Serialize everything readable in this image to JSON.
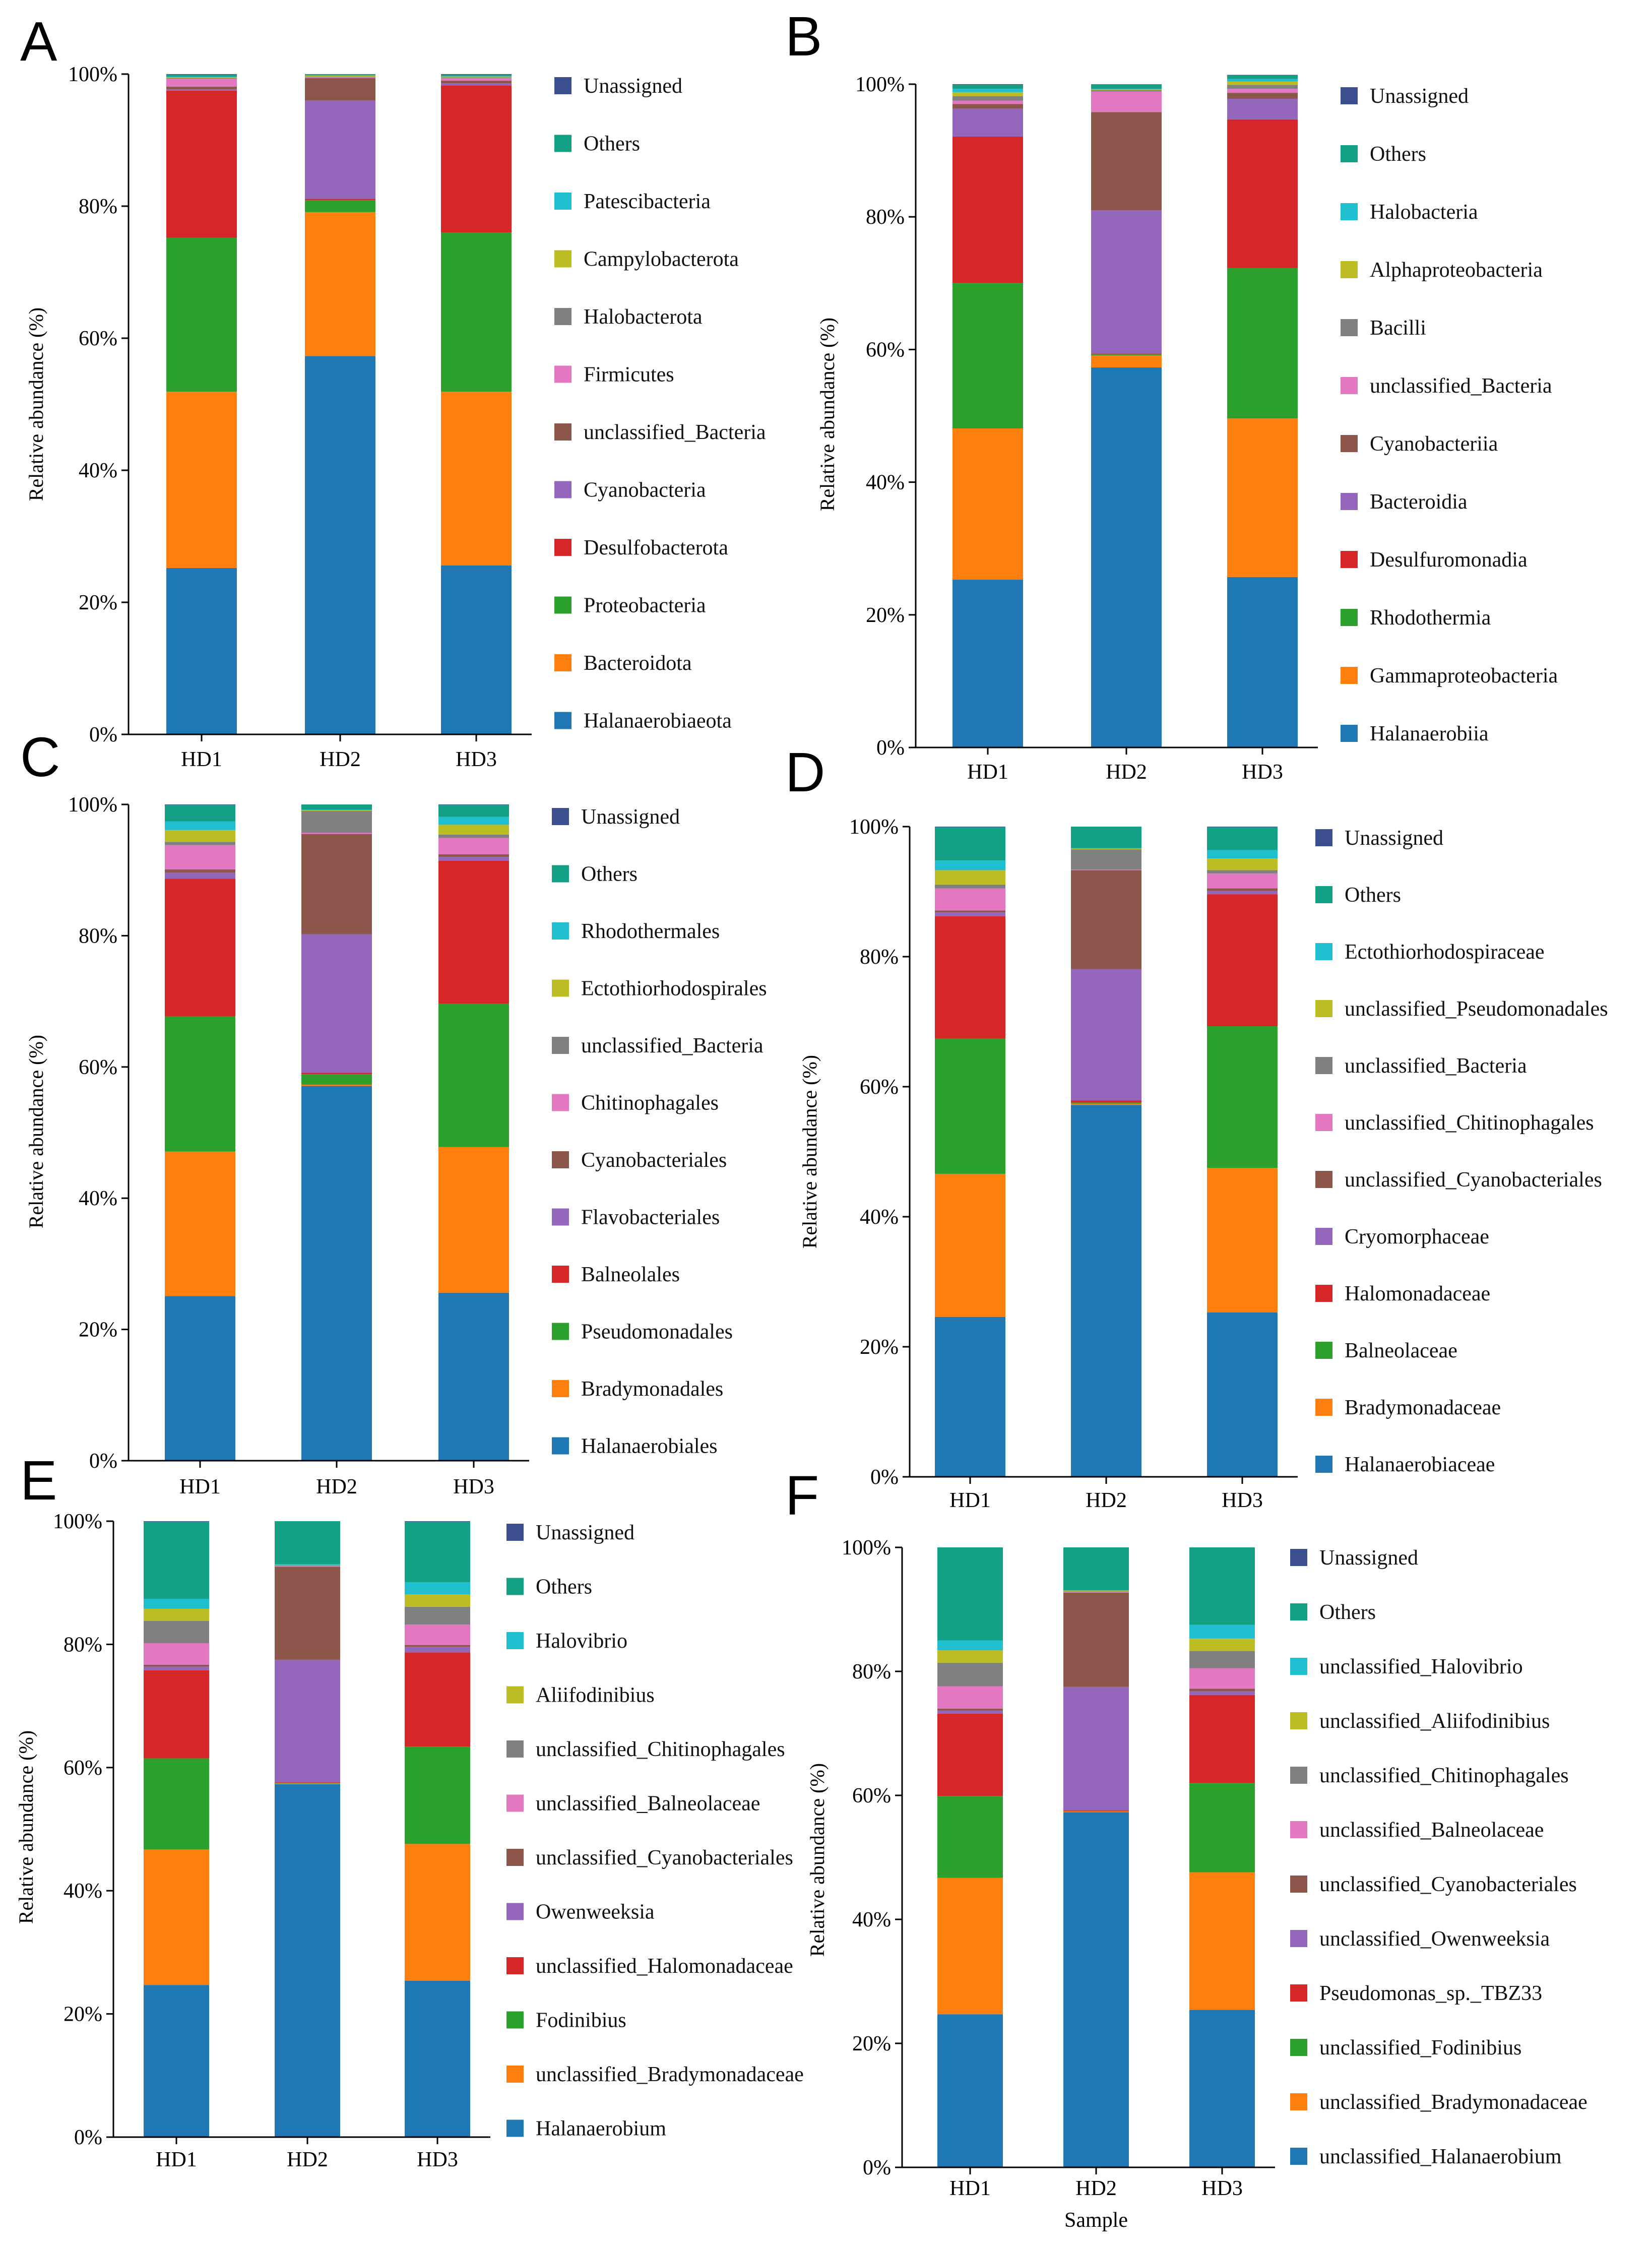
{
  "colors": {
    "Unassigned": "#3b4f8f",
    "Others": "#14a085",
    "c2": "#1fbfcf",
    "c3": "#bcbd22",
    "c4": "#808080",
    "c5": "#e377c2",
    "c6": "#8c564b",
    "c7": "#9467bd",
    "c8": "#d62728",
    "c9": "#2ca02c",
    "c10": "#ff7f0e",
    "c11": "#1f77b4"
  },
  "chart_data": [
    {
      "panel": "A",
      "type": "bar",
      "stacked": true,
      "categories": [
        "HD1",
        "HD2",
        "HD3"
      ],
      "ylabel": "Relative abundance (%)",
      "xlabel": "",
      "ylim": [
        0,
        100
      ],
      "yticks": [
        "0%",
        "20%",
        "40%",
        "60%",
        "80%",
        "100%"
      ],
      "legend": [
        "Unassigned",
        "Others",
        "Patescibacteria",
        "Campylobacterota",
        "Halobacterota",
        "Firmicutes",
        "unclassified_Bacteria",
        "Cyanobacteria",
        "Desulfobacterota",
        "Proteobacteria",
        "Bacteroidota",
        "Halanaerobiaeota"
      ],
      "series": [
        {
          "name": "Halanaerobiaeota",
          "values": [
            25.2,
            57.3,
            25.6
          ]
        },
        {
          "name": "Bacteroidota",
          "values": [
            26.7,
            21.8,
            26.3
          ]
        },
        {
          "name": "Proteobacteria",
          "values": [
            23.3,
            1.8,
            24.1
          ]
        },
        {
          "name": "Desulfobacterota",
          "values": [
            22.3,
            0.2,
            22.3
          ]
        },
        {
          "name": "Cyanobacteria",
          "values": [
            0.2,
            14.9,
            0.3
          ]
        },
        {
          "name": "unclassified_Bacteria",
          "values": [
            0.4,
            3.4,
            0.4
          ]
        },
        {
          "name": "Firmicutes",
          "values": [
            1.2,
            0.1,
            0.4
          ]
        },
        {
          "name": "Halobacterota",
          "values": [
            0.1,
            0.1,
            0.1
          ]
        },
        {
          "name": "Campylobacterota",
          "values": [
            0.1,
            0.2,
            0.1
          ]
        },
        {
          "name": "Patescibacteria",
          "values": [
            0.1,
            0.0,
            0.1
          ]
        },
        {
          "name": "Others",
          "values": [
            0.3,
            0.2,
            0.2
          ]
        },
        {
          "name": "Unassigned",
          "values": [
            0.1,
            0.0,
            0.1
          ]
        }
      ]
    },
    {
      "panel": "B",
      "type": "bar",
      "stacked": true,
      "categories": [
        "HD1",
        "HD2",
        "HD3"
      ],
      "ylabel": "Relative abundance (%)",
      "xlabel": "",
      "ylim": [
        0,
        100
      ],
      "yticks": [
        "0%",
        "20%",
        "40%",
        "60%",
        "80%",
        "100%"
      ],
      "legend": [
        "Unassigned",
        "Others",
        "Halobacteria",
        "Alphaproteobacteria",
        "Bacilli",
        "unclassified_Bacteria",
        "Cyanobacteriia",
        "Bacteroidia",
        "Desulfuromonadia",
        "Rhodothermia",
        "Gammaproteobacteria",
        "Halanaerobiia"
      ],
      "series": [
        {
          "name": "Halanaerobiia",
          "values": [
            25.3,
            57.3,
            25.7
          ]
        },
        {
          "name": "Gammaproteobacteria",
          "values": [
            22.8,
            1.8,
            23.9
          ]
        },
        {
          "name": "Rhodothermia",
          "values": [
            21.9,
            0.2,
            22.7
          ]
        },
        {
          "name": "Desulfuromonadia",
          "values": [
            22.1,
            0.1,
            22.4
          ]
        },
        {
          "name": "Bacteroidia",
          "values": [
            4.2,
            21.6,
            3.1
          ]
        },
        {
          "name": "Cyanobacteriia",
          "values": [
            0.7,
            14.8,
            0.9
          ]
        },
        {
          "name": "unclassified_Bacteria",
          "values": [
            0.5,
            3.1,
            0.6
          ]
        },
        {
          "name": "Bacilli",
          "values": [
            0.7,
            0.2,
            0.6
          ]
        },
        {
          "name": "Alphaproteobacteria",
          "values": [
            0.6,
            0.1,
            0.5
          ]
        },
        {
          "name": "Halobacteria",
          "values": [
            0.5,
            0.1,
            0.4
          ]
        },
        {
          "name": "Others",
          "values": [
            0.6,
            0.7,
            0.5
          ]
        },
        {
          "name": "Unassigned",
          "values": [
            0.1,
            0.0,
            0.1
          ]
        }
      ]
    },
    {
      "panel": "C",
      "type": "bar",
      "stacked": true,
      "categories": [
        "HD1",
        "HD2",
        "HD3"
      ],
      "ylabel": "Relative abundance (%)",
      "xlabel": "",
      "ylim": [
        0,
        100
      ],
      "yticks": [
        "0%",
        "20%",
        "40%",
        "60%",
        "80%",
        "100%"
      ],
      "legend": [
        "Unassigned",
        "Others",
        "Rhodothermales",
        "Ectothiorhodospirales",
        "unclassified_Bacteria",
        "Chitinophagales",
        "Cyanobacteriales",
        "Flavobacteriales",
        "Balneolales",
        "Pseudomonadales",
        "Bradymonadales",
        "Halanaerobiales"
      ],
      "series": [
        {
          "name": "Halanaerobiales",
          "values": [
            25.1,
            57.1,
            25.6
          ]
        },
        {
          "name": "Bradymonadales",
          "values": [
            22.0,
            0.2,
            22.2
          ]
        },
        {
          "name": "Pseudomonadales",
          "values": [
            20.6,
            1.6,
            21.8
          ]
        },
        {
          "name": "Balneolales",
          "values": [
            21.0,
            0.2,
            21.8
          ]
        },
        {
          "name": "Flavobacteriales",
          "values": [
            0.9,
            21.1,
            0.6
          ]
        },
        {
          "name": "Cyanobacteriales",
          "values": [
            0.5,
            15.3,
            0.4
          ]
        },
        {
          "name": "Chitinophagales",
          "values": [
            3.7,
            0.2,
            2.5
          ]
        },
        {
          "name": "unclassified_Bacteria",
          "values": [
            0.5,
            3.3,
            0.5
          ]
        },
        {
          "name": "Ectothiorhodospirales",
          "values": [
            1.8,
            0.1,
            1.5
          ]
        },
        {
          "name": "Rhodothermales",
          "values": [
            1.3,
            0.1,
            1.2
          ]
        },
        {
          "name": "Others",
          "values": [
            2.5,
            0.8,
            1.8
          ]
        },
        {
          "name": "Unassigned",
          "values": [
            0.1,
            0.0,
            0.1
          ]
        }
      ]
    },
    {
      "panel": "D",
      "type": "bar",
      "stacked": true,
      "categories": [
        "HD1",
        "HD2",
        "HD3"
      ],
      "ylabel": "Relative abundance (%)",
      "xlabel": "",
      "ylim": [
        0,
        100
      ],
      "yticks": [
        "0%",
        "20%",
        "40%",
        "60%",
        "80%",
        "100%"
      ],
      "legend": [
        "Unassigned",
        "Others",
        "Ectothiorhodospiraceae",
        "unclassified_Pseudomonadales",
        "unclassified_Bacteria",
        "unclassified_Chitinophagales",
        "unclassified_Cyanobacteriales",
        "Cryomorphaceae",
        "Halomonadaceae",
        "Balneolaceae",
        "Bradymonadaceae",
        "Halanaerobiaceae"
      ],
      "series": [
        {
          "name": "Halanaerobiaceae",
          "values": [
            24.6,
            57.2,
            25.3
          ]
        },
        {
          "name": "Bradymonadaceae",
          "values": [
            22.0,
            0.2,
            22.2
          ]
        },
        {
          "name": "Balneolaceae",
          "values": [
            20.8,
            0.2,
            21.8
          ]
        },
        {
          "name": "Halomonadaceae",
          "values": [
            18.8,
            0.3,
            20.3
          ]
        },
        {
          "name": "Cryomorphaceae",
          "values": [
            0.6,
            20.2,
            0.5
          ]
        },
        {
          "name": "unclassified_Cyanobacteriales",
          "values": [
            0.3,
            15.2,
            0.4
          ]
        },
        {
          "name": "unclassified_Chitinophagales",
          "values": [
            3.4,
            0.1,
            2.3
          ]
        },
        {
          "name": "unclassified_Bacteria",
          "values": [
            0.6,
            3.1,
            0.5
          ]
        },
        {
          "name": "unclassified_Pseudomonadales",
          "values": [
            2.2,
            0.1,
            1.8
          ]
        },
        {
          "name": "Ectothiorhodospiraceae",
          "values": [
            1.5,
            0.1,
            1.3
          ]
        },
        {
          "name": "Others",
          "values": [
            5.1,
            3.3,
            3.5
          ]
        },
        {
          "name": "Unassigned",
          "values": [
            0.1,
            0.0,
            0.1
          ]
        }
      ]
    },
    {
      "panel": "E",
      "type": "bar",
      "stacked": true,
      "categories": [
        "HD1",
        "HD2",
        "HD3"
      ],
      "ylabel": "Relative abundance (%)",
      "xlabel": "",
      "ylim": [
        0,
        100
      ],
      "yticks": [
        "0%",
        "20%",
        "40%",
        "60%",
        "80%",
        "100%"
      ],
      "legend": [
        "Unassigned",
        "Others",
        "Halovibrio",
        "Aliifodinibius",
        "unclassified_Chitinophagales",
        "unclassified_Balneolaceae",
        "unclassified_Cyanobacteriales",
        "Owenweeksia",
        "unclassified_Halomonadaceae",
        "Fodinibius",
        "unclassified_Bradymonadaceae",
        "Halanaerobium"
      ],
      "series": [
        {
          "name": "Halanaerobium",
          "values": [
            24.7,
            57.3,
            25.4
          ]
        },
        {
          "name": "unclassified_Bradymonadaceae",
          "values": [
            22.0,
            0.1,
            22.2
          ]
        },
        {
          "name": "Fodinibius",
          "values": [
            14.8,
            0.1,
            15.8
          ]
        },
        {
          "name": "unclassified_Halomonadaceae",
          "values": [
            14.3,
            0.1,
            15.3
          ]
        },
        {
          "name": "Owenweeksia",
          "values": [
            0.6,
            19.9,
            0.9
          ]
        },
        {
          "name": "unclassified_Cyanobacteriales",
          "values": [
            0.3,
            15.1,
            0.3
          ]
        },
        {
          "name": "unclassified_Balneolaceae",
          "values": [
            3.5,
            0.1,
            3.3
          ]
        },
        {
          "name": "unclassified_Chitinophagales",
          "values": [
            3.6,
            0.1,
            2.9
          ]
        },
        {
          "name": "Aliifodinibius",
          "values": [
            2.0,
            0.1,
            2.0
          ]
        },
        {
          "name": "Halovibrio",
          "values": [
            1.6,
            0.1,
            2.0
          ]
        },
        {
          "name": "Others",
          "values": [
            12.5,
            7.0,
            9.8
          ]
        },
        {
          "name": "Unassigned",
          "values": [
            0.1,
            0.0,
            0.1
          ]
        }
      ]
    },
    {
      "panel": "F",
      "type": "bar",
      "stacked": true,
      "categories": [
        "HD1",
        "HD2",
        "HD3"
      ],
      "ylabel": "Relative abundance (%)",
      "xlabel": "Sample",
      "ylim": [
        0,
        100
      ],
      "yticks": [
        "0%",
        "20%",
        "40%",
        "60%",
        "80%",
        "100%"
      ],
      "legend": [
        "Unassigned",
        "Others",
        "unclassified_Halovibrio",
        "unclassified_Aliifodinibius",
        "unclassified_Chitinophagales",
        "unclassified_Balneolaceae",
        "unclassified_Cyanobacteriales",
        "unclassified_Owenweeksia",
        "Pseudomonas_sp._TBZ33",
        "unclassified_Fodinibius",
        "unclassified_Bradymonadaceae",
        "unclassified_Halanaerobium"
      ],
      "series": [
        {
          "name": "unclassified_Halanaerobium",
          "values": [
            24.7,
            57.3,
            25.4
          ]
        },
        {
          "name": "unclassified_Bradymonadaceae",
          "values": [
            22.0,
            0.1,
            22.2
          ]
        },
        {
          "name": "unclassified_Fodinibius",
          "values": [
            13.2,
            0.1,
            14.4
          ]
        },
        {
          "name": "Pseudomonas_sp._TBZ33",
          "values": [
            13.3,
            0.1,
            14.2
          ]
        },
        {
          "name": "unclassified_Owenweeksia",
          "values": [
            0.5,
            19.9,
            0.6
          ]
        },
        {
          "name": "unclassified_Cyanobacteriales",
          "values": [
            0.3,
            15.2,
            0.4
          ]
        },
        {
          "name": "unclassified_Balneolaceae",
          "values": [
            3.6,
            0.1,
            3.3
          ]
        },
        {
          "name": "unclassified_Chitinophagales",
          "values": [
            3.8,
            0.1,
            2.8
          ]
        },
        {
          "name": "unclassified_Aliifodinibius",
          "values": [
            2.0,
            0.1,
            2.0
          ]
        },
        {
          "name": "unclassified_Halovibrio",
          "values": [
            1.6,
            0.1,
            2.2
          ]
        },
        {
          "name": "Others",
          "values": [
            15.0,
            6.9,
            12.5
          ]
        },
        {
          "name": "Unassigned",
          "values": [
            0.0,
            0.0,
            0.0
          ]
        }
      ]
    }
  ]
}
